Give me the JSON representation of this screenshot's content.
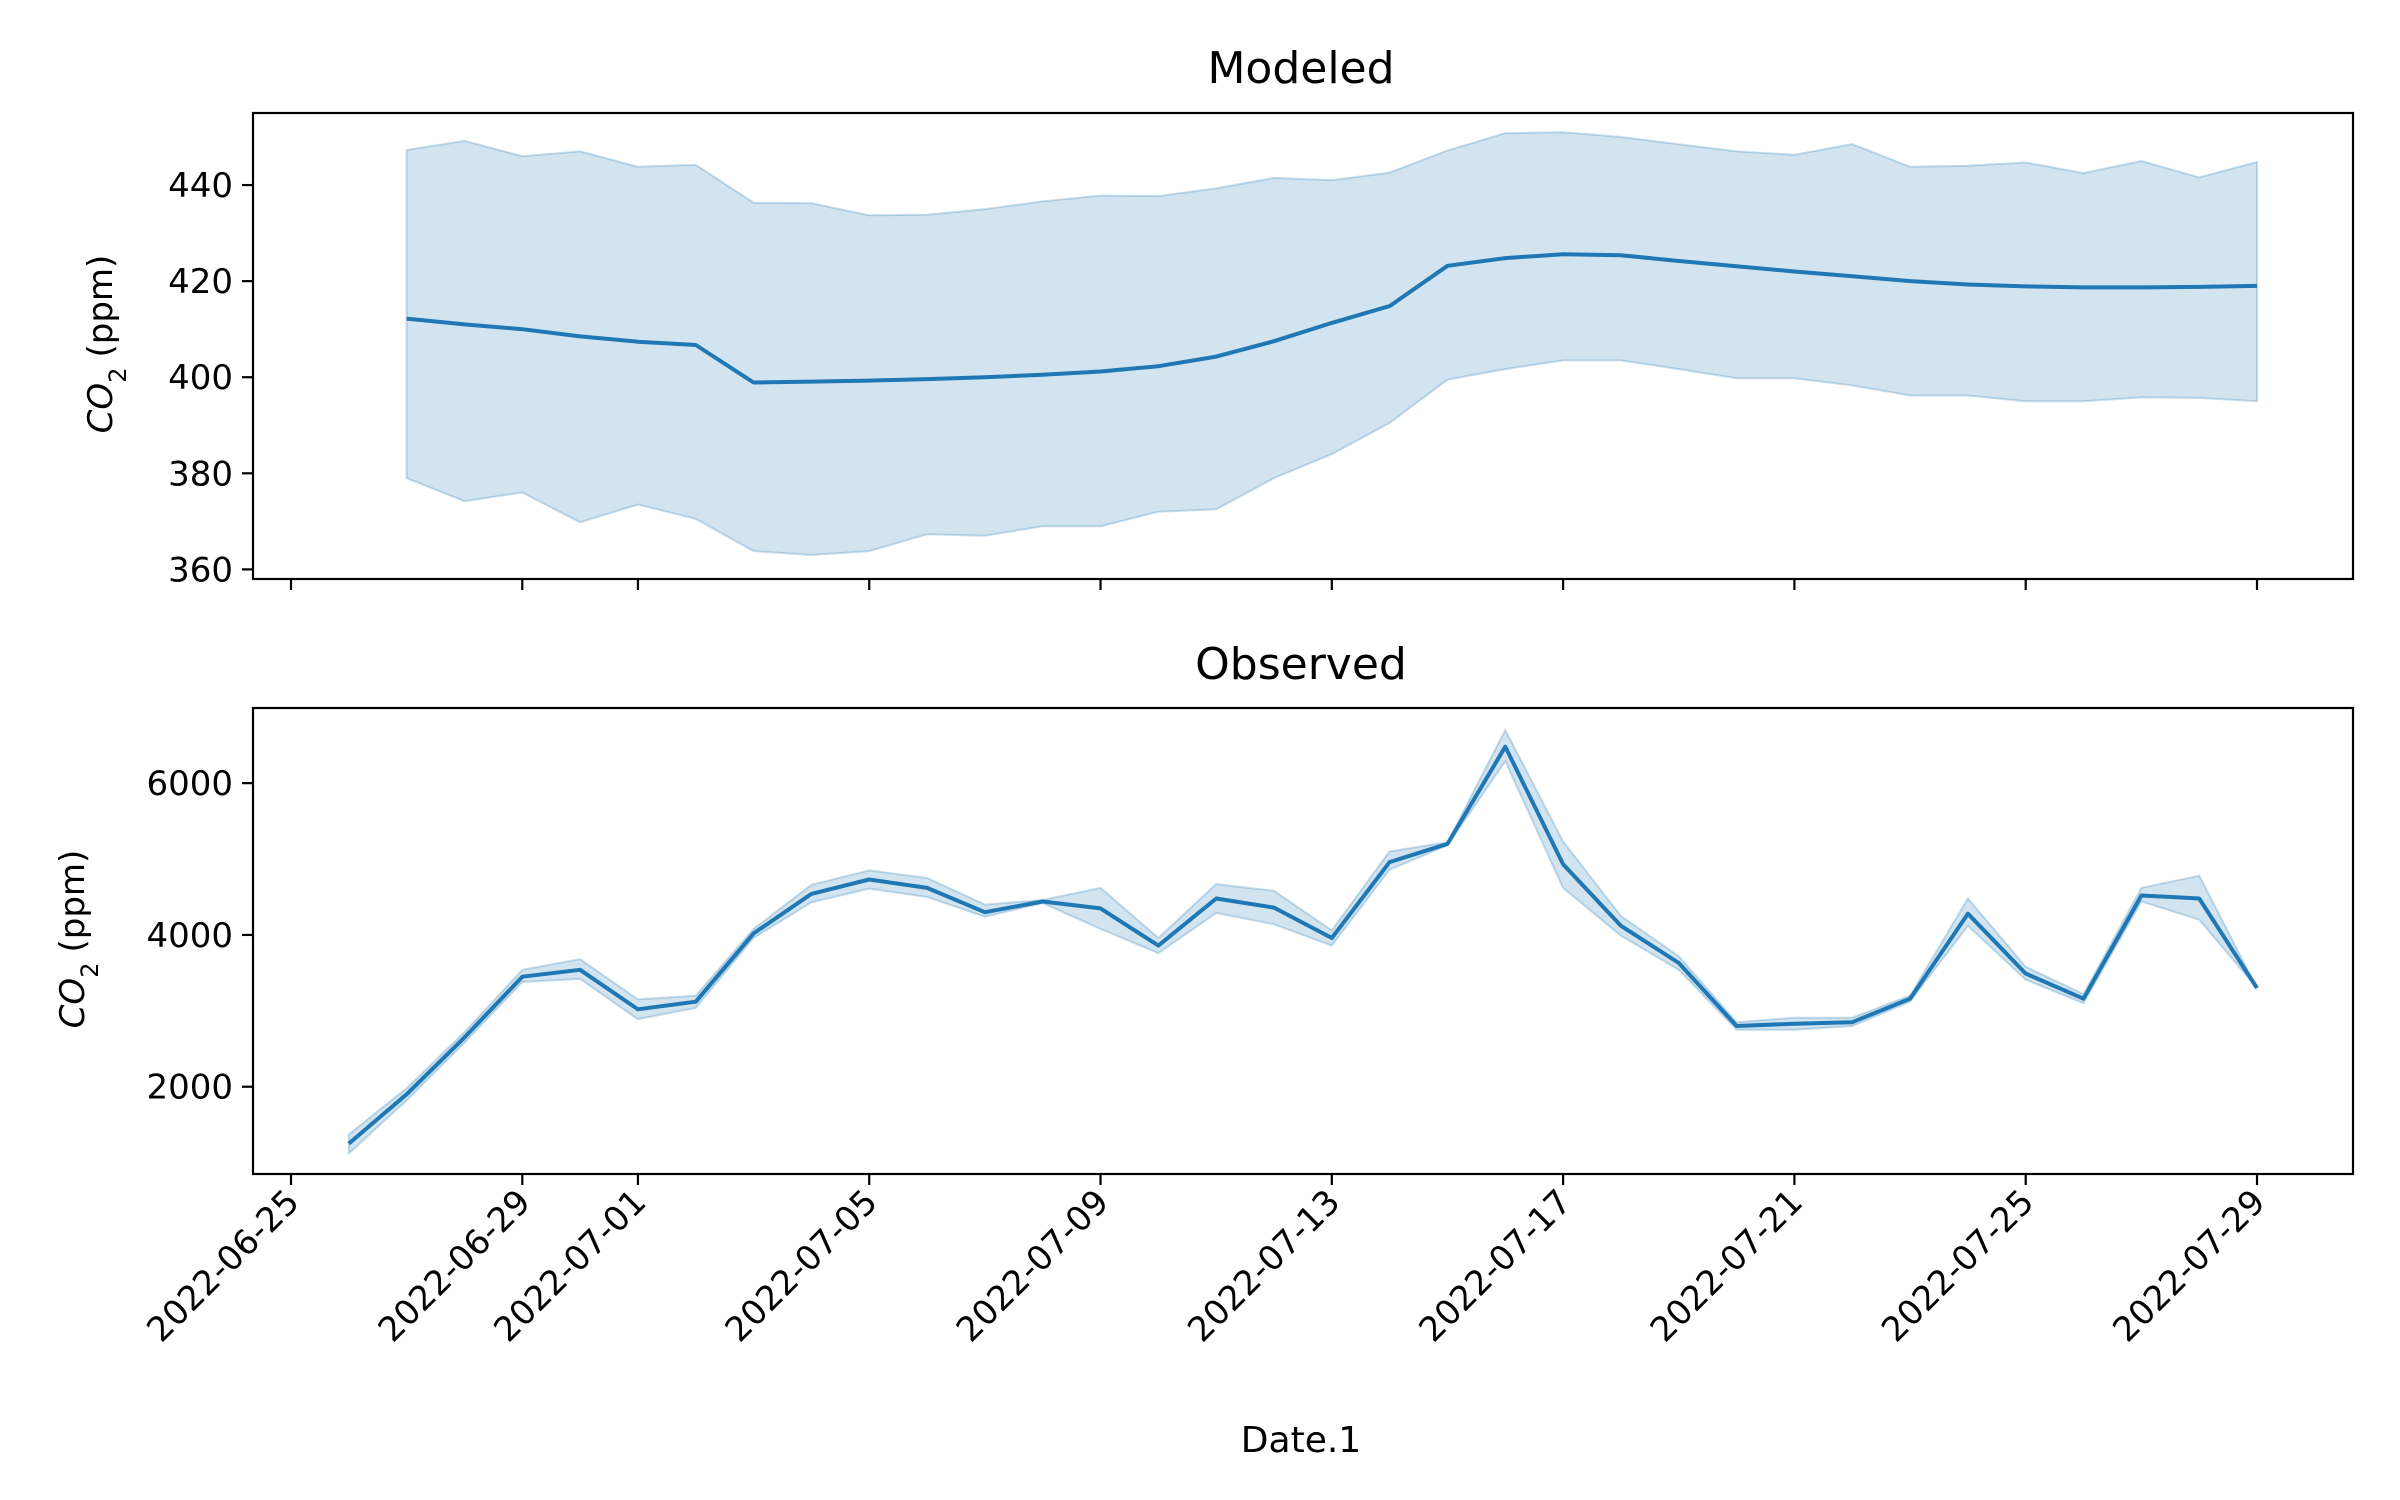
{
  "chart_data": [
    {
      "type": "line",
      "title": "Modeled",
      "xlabel": "",
      "ylabel": "(ppm)",
      "ylabel_symbol": "CO",
      "ylabel_subscript": "2",
      "ylim": [
        358,
        455
      ],
      "yticks": [
        360,
        380,
        400,
        420,
        440
      ],
      "xticks": [
        "2022-06-25",
        "2022-06-29",
        "2022-07-01",
        "2022-07-05",
        "2022-07-09",
        "2022-07-13",
        "2022-07-17",
        "2022-07-21",
        "2022-07-25",
        "2022-07-29"
      ],
      "show_xtick_labels": false,
      "colors": {
        "line": "#1f77b4",
        "band": "#1f77b4"
      },
      "series": [
        {
          "x": [
            "2022-06-27",
            "2022-06-28",
            "2022-06-29",
            "2022-06-30",
            "2022-07-01",
            "2022-07-02",
            "2022-07-03",
            "2022-07-04",
            "2022-07-05",
            "2022-07-06",
            "2022-07-07",
            "2022-07-08",
            "2022-07-09",
            "2022-07-10",
            "2022-07-11",
            "2022-07-12",
            "2022-07-13",
            "2022-07-14",
            "2022-07-15",
            "2022-07-16",
            "2022-07-17",
            "2022-07-18",
            "2022-07-19",
            "2022-07-20",
            "2022-07-21",
            "2022-07-22",
            "2022-07-23",
            "2022-07-24",
            "2022-07-25",
            "2022-07-26",
            "2022-07-27",
            "2022-07-28",
            "2022-07-29"
          ],
          "y": [
            412.2,
            411.0,
            410.0,
            408.5,
            407.4,
            406.7,
            398.9,
            399.1,
            399.3,
            399.6,
            400.0,
            400.5,
            401.2,
            402.3,
            404.3,
            407.5,
            411.3,
            414.8,
            423.2,
            424.8,
            425.6,
            425.4,
            424.2,
            423.1,
            422.0,
            421.0,
            420.0,
            419.3,
            418.9,
            418.7,
            418.7,
            418.8,
            419.0
          ],
          "lower": [
            379.0,
            374.2,
            376.0,
            369.8,
            373.5,
            370.5,
            363.8,
            363.0,
            363.8,
            367.3,
            367.0,
            369.0,
            369.0,
            372.0,
            372.5,
            379.0,
            384.0,
            390.5,
            399.5,
            401.7,
            403.5,
            403.5,
            401.7,
            399.8,
            399.8,
            398.3,
            396.2,
            396.2,
            395.0,
            395.0,
            395.8,
            395.7,
            395.0
          ],
          "upper": [
            447.3,
            449.2,
            446.0,
            447.0,
            443.8,
            444.2,
            436.3,
            436.2,
            433.7,
            433.8,
            435.0,
            436.6,
            437.8,
            437.7,
            439.3,
            441.5,
            441.0,
            442.6,
            447.2,
            450.8,
            451.0,
            450.0,
            448.5,
            447.0,
            446.3,
            448.5,
            443.8,
            444.0,
            444.7,
            442.5,
            445.0,
            441.6,
            444.8
          ]
        }
      ]
    },
    {
      "type": "line",
      "title": "Observed",
      "xlabel": "Date.1",
      "ylabel": "(ppm)",
      "ylabel_symbol": "CO",
      "ylabel_subscript": "2",
      "ylim": [
        850,
        6990
      ],
      "yticks": [
        2000,
        4000,
        6000
      ],
      "xticks": [
        "2022-06-25",
        "2022-06-29",
        "2022-07-01",
        "2022-07-05",
        "2022-07-09",
        "2022-07-13",
        "2022-07-17",
        "2022-07-21",
        "2022-07-25",
        "2022-07-29"
      ],
      "show_xtick_labels": true,
      "colors": {
        "line": "#1f77b4",
        "band": "#1f77b4"
      },
      "series": [
        {
          "x": [
            "2022-06-26",
            "2022-06-27",
            "2022-06-28",
            "2022-06-29",
            "2022-06-30",
            "2022-07-01",
            "2022-07-02",
            "2022-07-03",
            "2022-07-04",
            "2022-07-05",
            "2022-07-06",
            "2022-07-07",
            "2022-07-08",
            "2022-07-09",
            "2022-07-10",
            "2022-07-11",
            "2022-07-12",
            "2022-07-13",
            "2022-07-14",
            "2022-07-15",
            "2022-07-16",
            "2022-07-17",
            "2022-07-18",
            "2022-07-19",
            "2022-07-20",
            "2022-07-21",
            "2022-07-22",
            "2022-07-23",
            "2022-07-24",
            "2022-07-25",
            "2022-07-26",
            "2022-07-27",
            "2022-07-28",
            "2022-07-29"
          ],
          "y": [
            1250,
            1900,
            2650,
            3450,
            3540,
            3020,
            3120,
            4020,
            4540,
            4730,
            4620,
            4300,
            4440,
            4350,
            3860,
            4480,
            4360,
            3960,
            4960,
            5200,
            6480,
            4930,
            4120,
            3630,
            2800,
            2830,
            2850,
            3160,
            4280,
            3490,
            3160,
            4520,
            4480,
            3300
          ],
          "lower": [
            1120,
            1820,
            2580,
            3380,
            3420,
            2890,
            3040,
            3960,
            4430,
            4610,
            4500,
            4240,
            4420,
            4080,
            3760,
            4290,
            4140,
            3860,
            4860,
            5180,
            6290,
            4620,
            3990,
            3540,
            2750,
            2750,
            2800,
            3120,
            4120,
            3410,
            3100,
            4440,
            4200,
            3300
          ],
          "upper": [
            1370,
            1980,
            2720,
            3540,
            3680,
            3150,
            3200,
            4080,
            4660,
            4850,
            4750,
            4400,
            4460,
            4620,
            3960,
            4670,
            4580,
            4060,
            5100,
            5220,
            6700,
            5230,
            4250,
            3720,
            2850,
            2910,
            2910,
            3200,
            4480,
            3580,
            3220,
            4620,
            4780,
            3300
          ]
        }
      ]
    }
  ]
}
